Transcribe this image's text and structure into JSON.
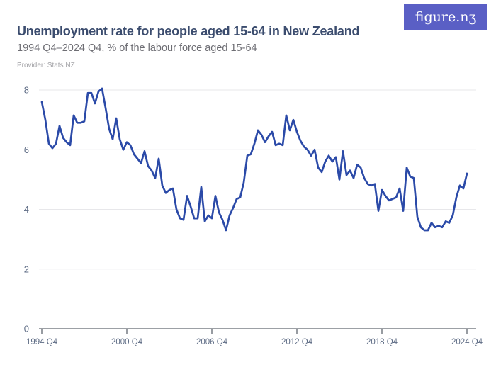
{
  "header": {
    "title": "Unemployment rate for people aged 15-64 in New Zealand",
    "subtitle": "1994 Q4–2024 Q4, % of the labour force aged 15-64",
    "provider": "Provider: Stats NZ",
    "logo_text": "figure.nz",
    "logo_display": "figure.nʒ"
  },
  "colors": {
    "line": "#2b4aa8",
    "grid": "#e7e7ea",
    "axis": "#60676f",
    "tick_label": "#5d6b84",
    "title": "#3b4c6e",
    "subtitle": "#6e6e74",
    "provider": "#a1a1a5",
    "logo_bg": "#5a5fc5",
    "logo_fg": "#ffffff",
    "background": "#ffffff"
  },
  "chart_data": {
    "type": "line",
    "title": "Unemployment rate for people aged 15-64 in New Zealand",
    "subtitle": "1994 Q4–2024 Q4, % of the labour force aged 15-64",
    "xlabel": "",
    "ylabel": "% of the labour force aged 15-64",
    "ylim": [
      0,
      8.4
    ],
    "y_ticks": [
      0,
      2,
      4,
      6,
      8
    ],
    "grid": "horizontal-only",
    "legend": "none",
    "x_tick_labels": [
      "1994 Q4",
      "2000 Q4",
      "2006 Q4",
      "2012 Q4",
      "2018 Q4",
      "2024 Q4"
    ],
    "x_tick_indices": [
      0,
      24,
      48,
      72,
      96,
      120
    ],
    "x": [
      "1994 Q4",
      "1995 Q1",
      "1995 Q2",
      "1995 Q3",
      "1995 Q4",
      "1996 Q1",
      "1996 Q2",
      "1996 Q3",
      "1996 Q4",
      "1997 Q1",
      "1997 Q2",
      "1997 Q3",
      "1997 Q4",
      "1998 Q1",
      "1998 Q2",
      "1998 Q3",
      "1998 Q4",
      "1999 Q1",
      "1999 Q2",
      "1999 Q3",
      "1999 Q4",
      "2000 Q1",
      "2000 Q2",
      "2000 Q3",
      "2000 Q4",
      "2001 Q1",
      "2001 Q2",
      "2001 Q3",
      "2001 Q4",
      "2002 Q1",
      "2002 Q2",
      "2002 Q3",
      "2002 Q4",
      "2003 Q1",
      "2003 Q2",
      "2003 Q3",
      "2003 Q4",
      "2004 Q1",
      "2004 Q2",
      "2004 Q3",
      "2004 Q4",
      "2005 Q1",
      "2005 Q2",
      "2005 Q3",
      "2005 Q4",
      "2006 Q1",
      "2006 Q2",
      "2006 Q3",
      "2006 Q4",
      "2007 Q1",
      "2007 Q2",
      "2007 Q3",
      "2007 Q4",
      "2008 Q1",
      "2008 Q2",
      "2008 Q3",
      "2008 Q4",
      "2009 Q1",
      "2009 Q2",
      "2009 Q3",
      "2009 Q4",
      "2010 Q1",
      "2010 Q2",
      "2010 Q3",
      "2010 Q4",
      "2011 Q1",
      "2011 Q2",
      "2011 Q3",
      "2011 Q4",
      "2012 Q1",
      "2012 Q2",
      "2012 Q3",
      "2012 Q4",
      "2013 Q1",
      "2013 Q2",
      "2013 Q3",
      "2013 Q4",
      "2014 Q1",
      "2014 Q2",
      "2014 Q3",
      "2014 Q4",
      "2015 Q1",
      "2015 Q2",
      "2015 Q3",
      "2015 Q4",
      "2016 Q1",
      "2016 Q2",
      "2016 Q3",
      "2016 Q4",
      "2017 Q1",
      "2017 Q2",
      "2017 Q3",
      "2017 Q4",
      "2018 Q1",
      "2018 Q2",
      "2018 Q3",
      "2018 Q4",
      "2019 Q1",
      "2019 Q2",
      "2019 Q3",
      "2019 Q4",
      "2020 Q1",
      "2020 Q2",
      "2020 Q3",
      "2020 Q4",
      "2021 Q1",
      "2021 Q2",
      "2021 Q3",
      "2021 Q4",
      "2022 Q1",
      "2022 Q2",
      "2022 Q3",
      "2022 Q4",
      "2023 Q1",
      "2023 Q2",
      "2023 Q3",
      "2023 Q4",
      "2024 Q1",
      "2024 Q2",
      "2024 Q3",
      "2024 Q4"
    ],
    "values": [
      7.6,
      7.0,
      6.2,
      6.05,
      6.2,
      6.8,
      6.4,
      6.25,
      6.15,
      7.15,
      6.9,
      6.9,
      6.95,
      7.9,
      7.9,
      7.55,
      7.95,
      8.05,
      7.4,
      6.7,
      6.35,
      7.05,
      6.35,
      6.0,
      6.25,
      6.15,
      5.85,
      5.7,
      5.55,
      5.95,
      5.45,
      5.3,
      5.05,
      5.7,
      4.8,
      4.55,
      4.65,
      4.7,
      4.0,
      3.7,
      3.65,
      4.45,
      4.1,
      3.7,
      3.7,
      4.75,
      3.6,
      3.8,
      3.7,
      4.45,
      3.9,
      3.65,
      3.3,
      3.8,
      4.05,
      4.35,
      4.4,
      4.9,
      5.8,
      5.85,
      6.2,
      6.65,
      6.5,
      6.25,
      6.45,
      6.6,
      6.15,
      6.2,
      6.15,
      7.15,
      6.65,
      7.0,
      6.6,
      6.3,
      6.1,
      6.0,
      5.8,
      6.0,
      5.4,
      5.25,
      5.6,
      5.8,
      5.6,
      5.75,
      5.0,
      5.95,
      5.15,
      5.3,
      5.05,
      5.5,
      5.4,
      5.05,
      4.85,
      4.8,
      4.85,
      3.95,
      4.65,
      4.45,
      4.3,
      4.35,
      4.4,
      4.7,
      3.95,
      5.4,
      5.1,
      5.05,
      3.75,
      3.4,
      3.3,
      3.3,
      3.55,
      3.4,
      3.45,
      3.4,
      3.6,
      3.55,
      3.8,
      4.4,
      4.8,
      4.7,
      5.2
    ]
  }
}
